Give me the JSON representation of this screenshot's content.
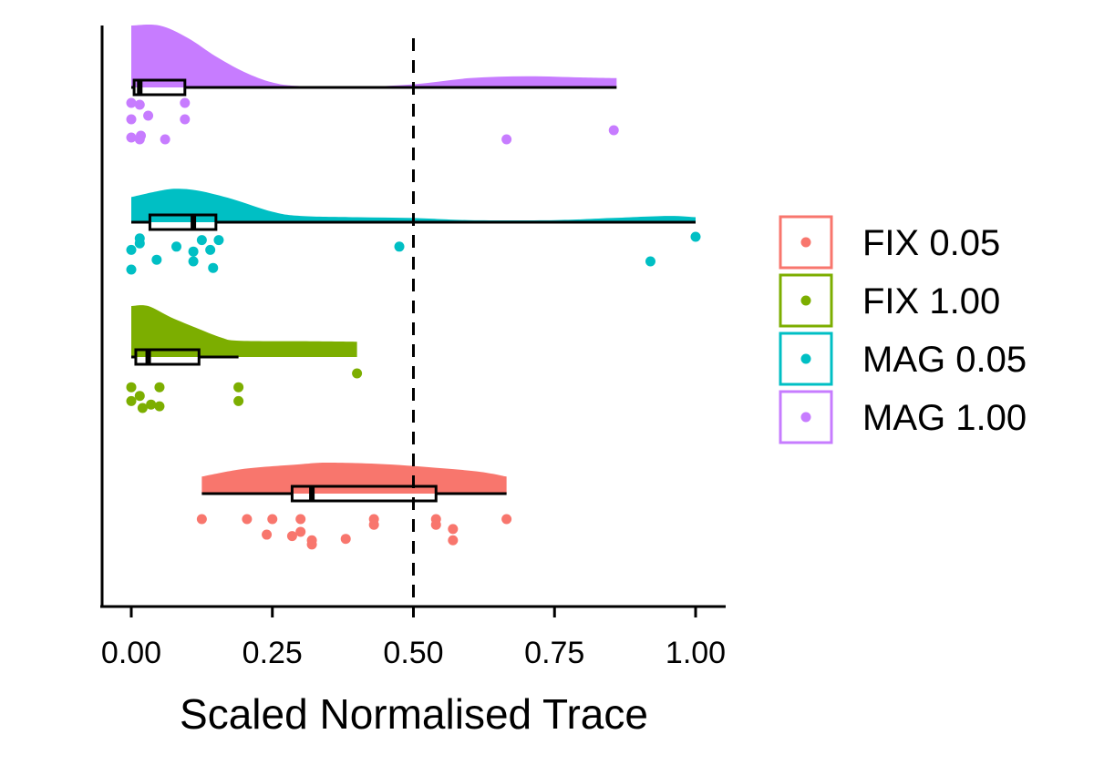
{
  "chart_data": {
    "type": "raincloud",
    "title": "",
    "xlabel": "Scaled Normalised Trace",
    "ylabel": "",
    "xlim": [
      -0.05,
      1.05
    ],
    "xticks": [
      0,
      0.25,
      0.5,
      0.75,
      1.0
    ],
    "xtick_labels": [
      "0.00",
      "0.25",
      "0.50",
      "0.75",
      "1.00"
    ],
    "reference_line": 0.5,
    "grid": false,
    "legend_position": "right",
    "series": [
      {
        "name": "FIX 0.05",
        "color": "#F8766D",
        "min": 0.125,
        "q1": 0.285,
        "median": 0.32,
        "q3": 0.54,
        "max": 0.665,
        "density": [
          [
            0.125,
            0.55
          ],
          [
            0.2,
            0.8
          ],
          [
            0.3,
            0.95
          ],
          [
            0.35,
            1.0
          ],
          [
            0.45,
            0.95
          ],
          [
            0.55,
            0.82
          ],
          [
            0.62,
            0.7
          ],
          [
            0.665,
            0.55
          ]
        ],
        "points": [
          [
            0.125,
            0
          ],
          [
            0.205,
            0
          ],
          [
            0.24,
            0.55
          ],
          [
            0.3,
            0
          ],
          [
            0.3,
            0.45
          ],
          [
            0.285,
            0.6
          ],
          [
            0.32,
            0.75
          ],
          [
            0.32,
            0.9
          ],
          [
            0.38,
            0.7
          ],
          [
            0.43,
            0
          ],
          [
            0.43,
            0.2
          ],
          [
            0.54,
            0
          ],
          [
            0.54,
            0.2
          ],
          [
            0.57,
            0.35
          ],
          [
            0.57,
            0.75
          ],
          [
            0.665,
            0
          ],
          [
            0.25,
            -0.55
          ]
        ]
      },
      {
        "name": "FIX 1.00",
        "color": "#7CAE00",
        "min": 0.0,
        "q1": 0.008,
        "median": 0.03,
        "q3": 0.12,
        "max": 0.19,
        "density": [
          [
            0.0,
            1.0
          ],
          [
            0.03,
            1.0
          ],
          [
            0.07,
            0.78
          ],
          [
            0.12,
            0.55
          ],
          [
            0.16,
            0.38
          ],
          [
            0.19,
            0.32
          ],
          [
            0.3,
            0.31
          ],
          [
            0.4,
            0.3
          ]
        ],
        "points": [
          [
            0.4,
            0
          ],
          [
            0.05,
            0.4
          ],
          [
            0.19,
            0.4
          ],
          [
            0.0,
            0.4
          ],
          [
            0.015,
            0.65
          ],
          [
            0.0,
            0.8
          ],
          [
            0.05,
            0.95
          ],
          [
            0.02,
            1.0
          ],
          [
            0.19,
            0.8
          ],
          [
            0.035,
            0.9
          ]
        ]
      },
      {
        "name": "MAG 0.05",
        "color": "#00BFC4",
        "min": 0.0,
        "q1": 0.033,
        "median": 0.11,
        "q3": 0.15,
        "max": 1.0,
        "density": [
          [
            0.0,
            0.6
          ],
          [
            0.05,
            0.75
          ],
          [
            0.08,
            0.8
          ],
          [
            0.12,
            0.75
          ],
          [
            0.18,
            0.55
          ],
          [
            0.25,
            0.25
          ],
          [
            0.3,
            0.15
          ],
          [
            0.4,
            0.12
          ],
          [
            0.5,
            0.1
          ],
          [
            0.6,
            0.05
          ],
          [
            0.75,
            0.05
          ],
          [
            0.85,
            0.1
          ],
          [
            0.95,
            0.15
          ],
          [
            1.0,
            0.12
          ]
        ],
        "points": [
          [
            1.0,
            0
          ],
          [
            0.015,
            0.05
          ],
          [
            0.015,
            0.2
          ],
          [
            0.125,
            0.1
          ],
          [
            0.155,
            0.1
          ],
          [
            0.08,
            0.3
          ],
          [
            0.0,
            0.4
          ],
          [
            0.11,
            0.45
          ],
          [
            0.14,
            0.4
          ],
          [
            0.475,
            0.3
          ],
          [
            0.045,
            0.7
          ],
          [
            0.11,
            0.75
          ],
          [
            0.92,
            0.75
          ],
          [
            0.0,
            1.0
          ],
          [
            0.145,
            0.95
          ]
        ]
      },
      {
        "name": "MAG 1.00",
        "color": "#C77CFF",
        "min": 0.0,
        "q1": 0.005,
        "median": 0.015,
        "q3": 0.095,
        "max": 0.86,
        "density": [
          [
            0.0,
            1.0
          ],
          [
            0.05,
            1.0
          ],
          [
            0.1,
            0.8
          ],
          [
            0.15,
            0.5
          ],
          [
            0.2,
            0.25
          ],
          [
            0.25,
            0.08
          ],
          [
            0.3,
            0.02
          ],
          [
            0.4,
            0.01
          ],
          [
            0.5,
            0.05
          ],
          [
            0.6,
            0.15
          ],
          [
            0.7,
            0.18
          ],
          [
            0.8,
            0.16
          ],
          [
            0.86,
            0.15
          ]
        ],
        "points": [
          [
            0.0,
            0
          ],
          [
            0.015,
            0.05
          ],
          [
            0.095,
            0
          ],
          [
            0.03,
            0.35
          ],
          [
            0.0,
            0.45
          ],
          [
            0.095,
            0.45
          ],
          [
            0.855,
            0.75
          ],
          [
            0.0,
            0.95
          ],
          [
            0.015,
            1.0
          ],
          [
            0.06,
            1.0
          ],
          [
            0.665,
            1.0
          ],
          [
            0.017,
            0.9
          ]
        ]
      }
    ]
  }
}
